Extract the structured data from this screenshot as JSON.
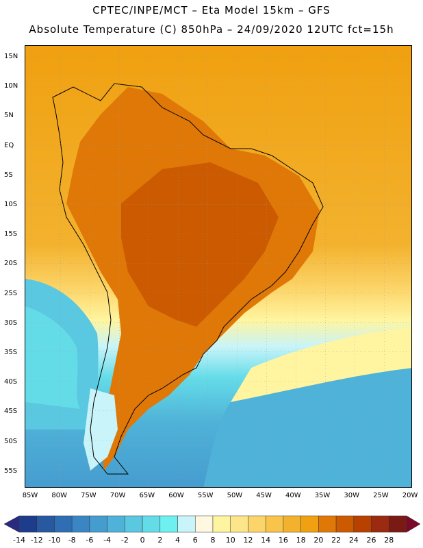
{
  "header": {
    "line1": "CPTEC/INPE/MCT –  Eta Model 15km – GFS",
    "line2": "Absolute Temperature (C) 850hPa – 24/09/2020 12UTC fct=15h"
  },
  "axes": {
    "lat_labels": [
      "15N",
      "10N",
      "5N",
      "EQ",
      "5S",
      "10S",
      "15S",
      "20S",
      "25S",
      "30S",
      "35S",
      "40S",
      "45S",
      "50S",
      "55S"
    ],
    "lon_labels": [
      "85W",
      "80W",
      "75W",
      "70W",
      "65W",
      "60W",
      "55W",
      "50W",
      "45W",
      "40W",
      "35W",
      "30W",
      "25W",
      "20W"
    ]
  },
  "colorbar": {
    "labels": [
      "-14",
      "-12",
      "-10",
      "-8",
      "-6",
      "-4",
      "-2",
      "0",
      "2",
      "4",
      "6",
      "8",
      "10",
      "12",
      "14",
      "16",
      "18",
      "20",
      "22",
      "24",
      "26",
      "28"
    ],
    "colors": [
      "#1e3c8c",
      "#2858a0",
      "#2f6eb4",
      "#3a86c4",
      "#459ccf",
      "#4fb2d8",
      "#5ac8e0",
      "#64dce8",
      "#6ef0f0",
      "#c8f4fa",
      "#fff8e0",
      "#fff5a0",
      "#fde68a",
      "#fcd56a",
      "#f8c44a",
      "#f3b22e",
      "#f0a010",
      "#e07808",
      "#cc5a00",
      "#b84000",
      "#9a2a10",
      "#7a1a14"
    ],
    "left_end_color": "#2a2a80",
    "right_end_color": "#7a0a28"
  }
}
